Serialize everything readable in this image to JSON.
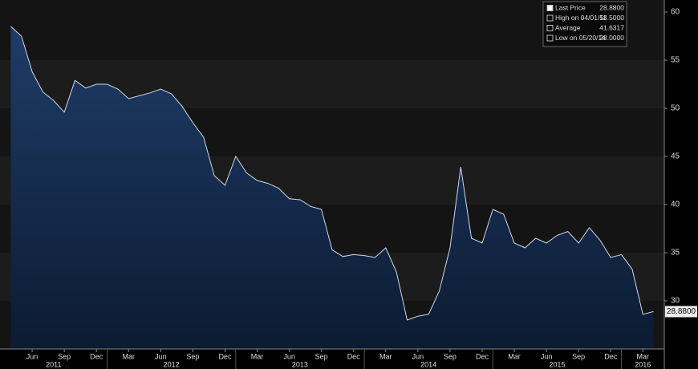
{
  "chart_data": {
    "type": "area",
    "series": [
      {
        "name": "Last Price",
        "color": "#cfd8e8",
        "x": [
          "2011-04",
          "2011-05",
          "2011-06",
          "2011-07",
          "2011-08",
          "2011-09",
          "2011-10",
          "2011-11",
          "2011-12",
          "2012-01",
          "2012-02",
          "2012-03",
          "2012-04",
          "2012-05",
          "2012-06",
          "2012-07",
          "2012-08",
          "2012-09",
          "2012-10",
          "2012-11",
          "2012-12",
          "2013-01",
          "2013-02",
          "2013-03",
          "2013-04",
          "2013-05",
          "2013-06",
          "2013-07",
          "2013-08",
          "2013-09",
          "2013-10",
          "2013-11",
          "2013-12",
          "2014-01",
          "2014-02",
          "2014-03",
          "2014-04",
          "2014-05",
          "2014-06",
          "2014-07",
          "2014-08",
          "2014-09",
          "2014-10",
          "2014-11",
          "2014-12",
          "2015-01",
          "2015-02",
          "2015-03",
          "2015-04",
          "2015-05",
          "2015-06",
          "2015-07",
          "2015-08",
          "2015-09",
          "2015-10",
          "2015-11",
          "2015-12",
          "2016-01",
          "2016-02",
          "2016-03",
          "2016-04"
        ],
        "values": [
          58.5,
          57.5,
          53.8,
          51.7,
          50.8,
          49.6,
          52.9,
          52.1,
          52.5,
          52.5,
          52.0,
          51.0,
          51.3,
          51.6,
          52.0,
          51.5,
          50.2,
          48.5,
          47.0,
          43.0,
          42.0,
          45.0,
          43.3,
          42.5,
          42.2,
          41.7,
          40.6,
          40.5,
          39.8,
          39.5,
          35.3,
          34.6,
          34.8,
          34.7,
          34.5,
          35.5,
          33.0,
          28.0,
          28.4,
          28.6,
          31.0,
          35.5,
          43.9,
          36.5,
          36.0,
          39.5,
          39.0,
          36.0,
          35.5,
          36.5,
          36.0,
          36.8,
          37.2,
          36.0,
          37.6,
          36.3,
          34.5,
          34.8,
          33.3,
          28.6,
          28.88
        ]
      }
    ],
    "xlim": [
      "2011-03",
      "2016-05"
    ],
    "xticks": [
      {
        "value": "2011-06",
        "label": "Jun"
      },
      {
        "value": "2011-09",
        "label": "Sep"
      },
      {
        "value": "2011-12",
        "label": "Dec"
      },
      {
        "value": "2012-03",
        "label": "Mar"
      },
      {
        "value": "2012-06",
        "label": "Jun"
      },
      {
        "value": "2012-09",
        "label": "Sep"
      },
      {
        "value": "2012-12",
        "label": "Dec"
      },
      {
        "value": "2013-03",
        "label": "Mar"
      },
      {
        "value": "2013-06",
        "label": "Jun"
      },
      {
        "value": "2013-09",
        "label": "Sep"
      },
      {
        "value": "2013-12",
        "label": "Dec"
      },
      {
        "value": "2014-03",
        "label": "Mar"
      },
      {
        "value": "2014-06",
        "label": "Jun"
      },
      {
        "value": "2014-09",
        "label": "Sep"
      },
      {
        "value": "2014-12",
        "label": "Dec"
      },
      {
        "value": "2015-03",
        "label": "Mar"
      },
      {
        "value": "2015-06",
        "label": "Jun"
      },
      {
        "value": "2015-09",
        "label": "Sep"
      },
      {
        "value": "2015-12",
        "label": "Dec"
      },
      {
        "value": "2016-03",
        "label": "Mar"
      }
    ],
    "xyears": [
      2011,
      2012,
      2013,
      2014,
      2015,
      2016
    ],
    "ylim": [
      25,
      61.25
    ],
    "yticks": [
      30,
      35,
      40,
      45,
      50,
      55,
      60
    ],
    "legend": [
      {
        "name": "Last Price",
        "value": 28.88,
        "value_label": "28.8800"
      },
      {
        "name": "High on 04/01/11",
        "value": 58.5,
        "value_label": "58.5000"
      },
      {
        "name": "Average",
        "value": 41.6317,
        "value_label": "41.6317"
      },
      {
        "name": "Low on 05/20/14",
        "value": 28.0,
        "value_label": "28.0000"
      }
    ]
  }
}
